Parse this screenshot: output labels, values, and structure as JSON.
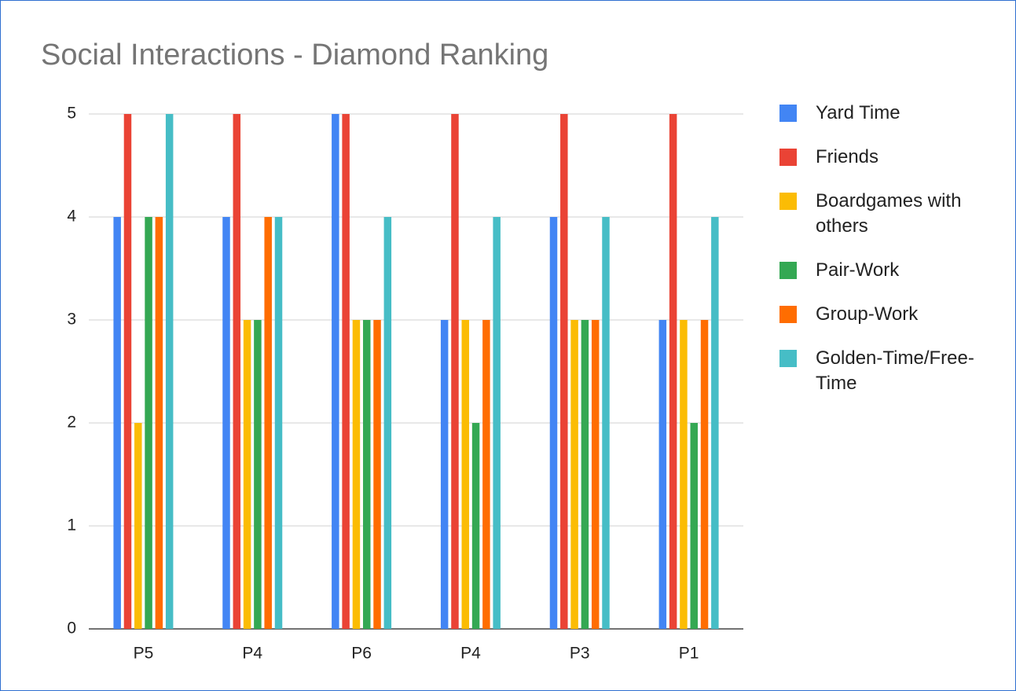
{
  "chart_data": {
    "type": "bar",
    "title": "Social Interactions - Diamond Ranking",
    "categories": [
      "P5",
      "P4",
      "P6",
      "P4",
      "P3",
      "P1"
    ],
    "series": [
      {
        "name": "Yard Time",
        "color": "#4285f4",
        "values": [
          4,
          4,
          5,
          3,
          4,
          3
        ]
      },
      {
        "name": "Friends",
        "color": "#ea4335",
        "values": [
          5,
          5,
          5,
          5,
          5,
          5
        ]
      },
      {
        "name": "Boardgames with others",
        "color": "#fbbc04",
        "values": [
          2,
          3,
          3,
          3,
          3,
          3
        ]
      },
      {
        "name": "Pair-Work",
        "color": "#34a853",
        "values": [
          4,
          3,
          3,
          2,
          3,
          2
        ]
      },
      {
        "name": "Group-Work",
        "color": "#ff6d01",
        "values": [
          4,
          4,
          3,
          3,
          3,
          3
        ]
      },
      {
        "name": "Golden-Time/Free-Time",
        "color": "#46bdc6",
        "values": [
          5,
          4,
          4,
          4,
          4,
          4
        ]
      }
    ],
    "ylim": [
      0,
      5
    ],
    "yticks": [
      0,
      1,
      2,
      3,
      4,
      5
    ],
    "grid": true,
    "legend": "right"
  }
}
